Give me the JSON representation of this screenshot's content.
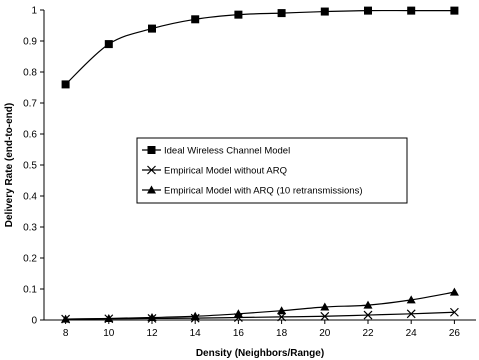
{
  "chart_data": {
    "type": "line",
    "title": "",
    "xlabel": "Density (Neighbors/Range)",
    "ylabel": "Delivery Rate (end-to-end)",
    "x": [
      8,
      10,
      12,
      14,
      16,
      18,
      20,
      22,
      24,
      26
    ],
    "x_ticks": [
      "8",
      "10",
      "12",
      "14",
      "16",
      "18",
      "20",
      "22",
      "24",
      "26"
    ],
    "y_ticks": [
      "0",
      "0.1",
      "0.2",
      "0.3",
      "0.4",
      "0.5",
      "0.6",
      "0.7",
      "0.8",
      "0.9",
      "1"
    ],
    "xlim": [
      7,
      27
    ],
    "ylim": [
      0,
      1
    ],
    "grid": false,
    "legend_placement": "center",
    "series": [
      {
        "name": "Ideal Wireless Channel Model",
        "marker": "square",
        "color": "#000000",
        "values": [
          0.76,
          0.89,
          0.94,
          0.97,
          0.985,
          0.99,
          0.995,
          0.998,
          0.998,
          0.998
        ]
      },
      {
        "name": "Empirical Model without ARQ",
        "marker": "x",
        "color": "#000000",
        "values": [
          0.003,
          0.004,
          0.005,
          0.006,
          0.008,
          0.01,
          0.012,
          0.016,
          0.02,
          0.025
        ]
      },
      {
        "name": "Empirical Model with ARQ (10 retransmissions)",
        "marker": "triangle",
        "color": "#000000",
        "values": [
          0.003,
          0.005,
          0.008,
          0.012,
          0.02,
          0.03,
          0.042,
          0.048,
          0.065,
          0.09
        ]
      }
    ]
  }
}
